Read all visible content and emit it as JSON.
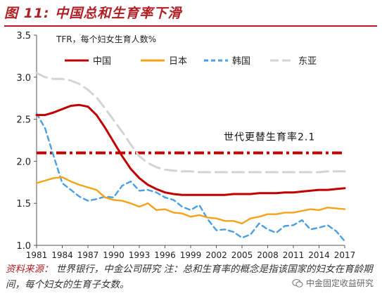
{
  "figure": {
    "title": "图 11: 中国总和生育率下滑",
    "source_label": "资料来源：",
    "source_text": "世界银行，中金公司研究 注：总和生育率的概念是指该国家的妇女在育龄期间，每个妇女的生育子女数。",
    "watermark": "中金固定收益研究"
  },
  "chart_data": {
    "type": "line",
    "ylabel": "TFR，每个妇女生育人数%",
    "x": [
      1981,
      1982,
      1983,
      1984,
      1985,
      1986,
      1987,
      1988,
      1989,
      1990,
      1991,
      1992,
      1993,
      1994,
      1995,
      1996,
      1997,
      1998,
      1999,
      2000,
      2001,
      2002,
      2003,
      2004,
      2005,
      2006,
      2007,
      2008,
      2009,
      2010,
      2011,
      2012,
      2013,
      2014,
      2015,
      2016,
      2017
    ],
    "x_ticks": [
      1981,
      1984,
      1987,
      1990,
      1993,
      1996,
      1999,
      2002,
      2005,
      2008,
      2011,
      2014,
      2017
    ],
    "ylim": [
      1.0,
      3.5
    ],
    "y_ticks": [
      1.0,
      1.5,
      2.0,
      2.5,
      3.0,
      3.5
    ],
    "grid": false,
    "legend_position": "top",
    "series": [
      {
        "name": "中国",
        "color": "#c00000",
        "style": "solid",
        "values": [
          2.55,
          2.55,
          2.58,
          2.62,
          2.66,
          2.67,
          2.65,
          2.55,
          2.4,
          2.23,
          2.06,
          1.91,
          1.8,
          1.72,
          1.67,
          1.63,
          1.61,
          1.6,
          1.6,
          1.6,
          1.6,
          1.6,
          1.6,
          1.61,
          1.61,
          1.61,
          1.62,
          1.62,
          1.62,
          1.63,
          1.63,
          1.64,
          1.65,
          1.66,
          1.66,
          1.67,
          1.68
        ]
      },
      {
        "name": "日本",
        "color": "#f5a21b",
        "style": "solid",
        "values": [
          1.74,
          1.77,
          1.8,
          1.81,
          1.76,
          1.72,
          1.69,
          1.66,
          1.57,
          1.54,
          1.53,
          1.5,
          1.46,
          1.5,
          1.42,
          1.43,
          1.39,
          1.38,
          1.34,
          1.36,
          1.33,
          1.32,
          1.29,
          1.29,
          1.26,
          1.32,
          1.34,
          1.37,
          1.37,
          1.39,
          1.39,
          1.41,
          1.43,
          1.42,
          1.45,
          1.44,
          1.43
        ]
      },
      {
        "name": "韩国",
        "color": "#4a9fe0",
        "style": "dashed",
        "values": [
          2.57,
          2.39,
          2.06,
          1.74,
          1.66,
          1.58,
          1.53,
          1.55,
          1.58,
          1.57,
          1.71,
          1.76,
          1.65,
          1.66,
          1.63,
          1.57,
          1.54,
          1.46,
          1.42,
          1.48,
          1.31,
          1.18,
          1.19,
          1.16,
          1.09,
          1.13,
          1.26,
          1.19,
          1.15,
          1.23,
          1.24,
          1.3,
          1.19,
          1.21,
          1.24,
          1.17,
          1.05
        ]
      },
      {
        "name": "东亚",
        "color": "#d4d4d4",
        "style": "dashed",
        "values": [
          3.05,
          3.0,
          2.98,
          2.98,
          2.96,
          2.92,
          2.85,
          2.76,
          2.63,
          2.49,
          2.35,
          2.2,
          2.06,
          1.98,
          1.93,
          1.9,
          1.89,
          1.88,
          1.88,
          1.87,
          1.87,
          1.87,
          1.87,
          1.87,
          1.87,
          1.87,
          1.87,
          1.87,
          1.87,
          1.87,
          1.87,
          1.87,
          1.87,
          1.87,
          1.88,
          1.88,
          1.88
        ]
      }
    ],
    "reference_line": {
      "value": 2.1,
      "label": "世代更替生育率2.1",
      "color": "#c00000",
      "style": "dash-dot"
    }
  }
}
